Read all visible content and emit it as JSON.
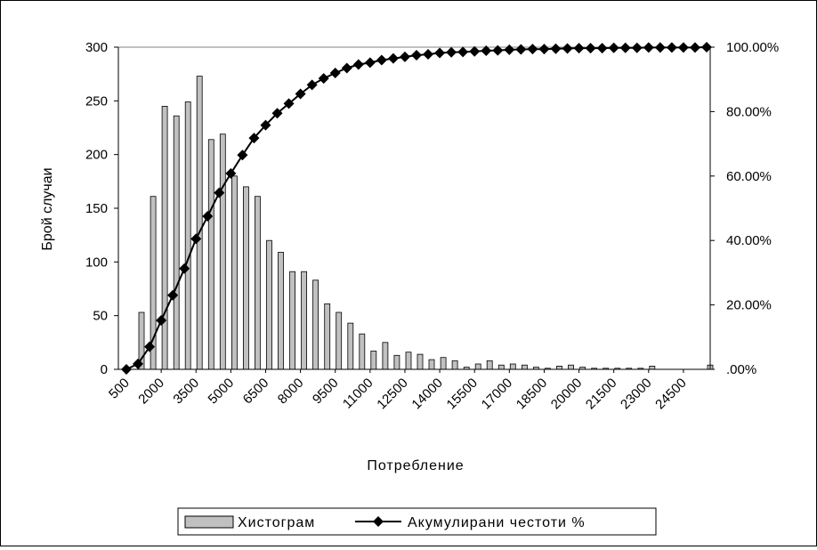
{
  "chart_data": {
    "type": "bar+line",
    "title": "",
    "xlabel": "Потребление",
    "ylabel": "Брой случаи",
    "ylim": [
      0,
      300
    ],
    "y2lim": [
      0,
      100
    ],
    "yticks": [
      "0",
      "50",
      "100",
      "150",
      "200",
      "250",
      "300"
    ],
    "y2ticks": [
      ".00%",
      "20.00%",
      "40.00%",
      "60.00%",
      "80.00%",
      "100.00%"
    ],
    "x_tick_labels": [
      "500",
      "2000",
      "3500",
      "5000",
      "6500",
      "8000",
      "9500",
      "11000",
      "12500",
      "14000",
      "15500",
      "17000",
      "18500",
      "20000",
      "21500",
      "23000",
      "24500"
    ],
    "x": [
      500,
      1000,
      1500,
      2000,
      2500,
      3000,
      3500,
      4000,
      4500,
      5000,
      5500,
      6000,
      6500,
      7000,
      7500,
      8000,
      8500,
      9000,
      9500,
      10000,
      10500,
      11000,
      11500,
      12000,
      12500,
      13000,
      13500,
      14000,
      14500,
      15000,
      15500,
      16000,
      16500,
      17000,
      17500,
      18000,
      18500,
      19000,
      19500,
      20000,
      20500,
      21000,
      21500,
      22000,
      22500,
      23000,
      23500,
      24000,
      24500,
      25000,
      25500
    ],
    "series": [
      {
        "name": "Хистограм",
        "type": "bar",
        "axis": "left",
        "color": "#c0c0c0",
        "values": [
          0,
          53,
          161,
          245,
          236,
          249,
          273,
          214,
          219,
          180,
          170,
          161,
          120,
          109,
          91,
          91,
          83,
          61,
          53,
          43,
          33,
          17,
          25,
          13,
          16,
          14,
          9,
          11,
          8,
          2,
          5,
          8,
          4,
          5,
          4,
          2,
          1,
          3,
          4,
          2,
          1,
          1,
          1,
          1,
          1,
          3,
          0,
          0,
          0,
          0,
          4
        ]
      },
      {
        "name": "Акумулирани честоти %",
        "type": "line",
        "axis": "right",
        "color": "#000000",
        "marker": "diamond",
        "values": [
          0.0,
          1.7,
          7.0,
          15.2,
          23.0,
          31.3,
          40.5,
          47.5,
          54.8,
          60.8,
          66.5,
          71.8,
          75.8,
          79.5,
          82.5,
          85.5,
          88.3,
          90.3,
          92.0,
          93.5,
          94.6,
          95.2,
          96.0,
          96.5,
          97.0,
          97.5,
          97.8,
          98.2,
          98.4,
          98.5,
          98.7,
          98.9,
          99.0,
          99.2,
          99.3,
          99.4,
          99.4,
          99.5,
          99.6,
          99.7,
          99.7,
          99.7,
          99.8,
          99.8,
          99.8,
          99.9,
          99.9,
          99.9,
          99.9,
          99.9,
          100.0
        ]
      }
    ],
    "grid": false,
    "legend_position": "bottom"
  }
}
